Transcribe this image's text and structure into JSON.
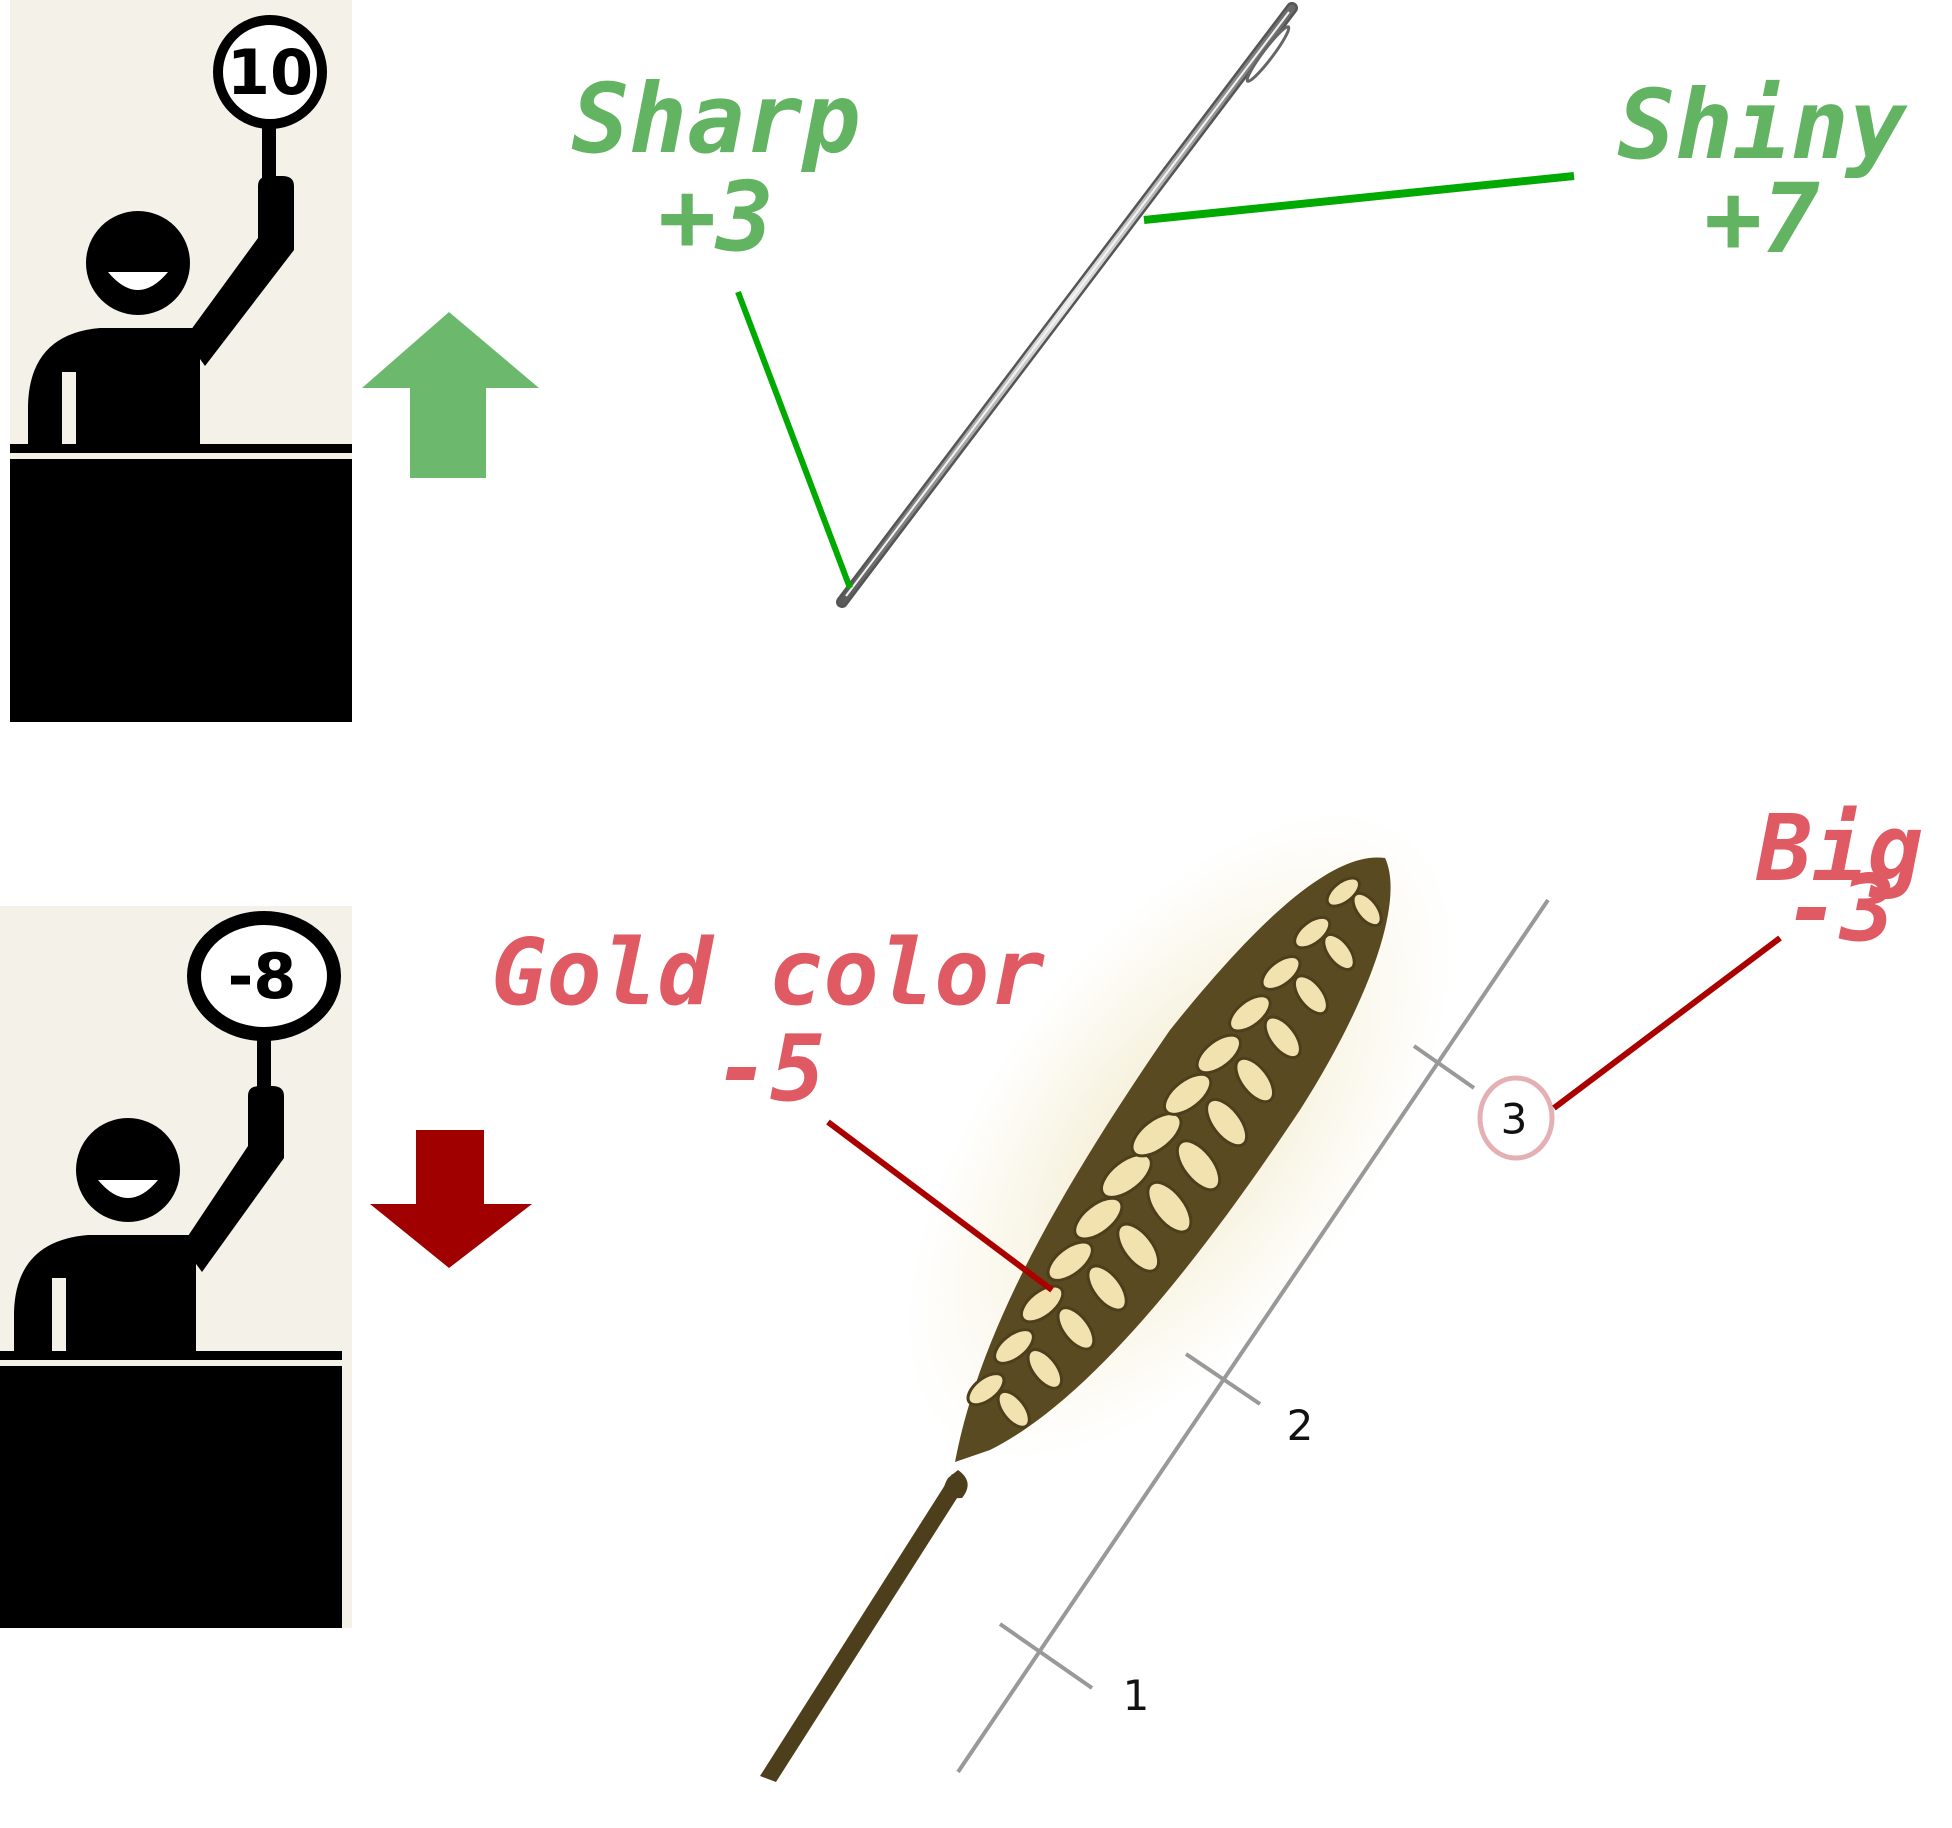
{
  "colors": {
    "positive_text": "#62b462",
    "positive_line": "#00aa00",
    "positive_arrow": "#6cb86c",
    "negative_text": "#e05a63",
    "negative_line": "#aa0000",
    "negative_arrow": "#a00000",
    "panel_bg": "#f3f1e8",
    "figure": "#000000",
    "ruler": "#999999"
  },
  "judges": [
    {
      "score": "10",
      "arrow": "up-arrow"
    },
    {
      "score": "-8",
      "arrow": "down-arrow"
    }
  ],
  "needle": {
    "features": [
      {
        "name": "Sharp",
        "value": "+3"
      },
      {
        "name": "Shiny",
        "value": "+7"
      }
    ]
  },
  "wheat": {
    "features": [
      {
        "name": "Gold color",
        "value": "-5"
      },
      {
        "name": "Big",
        "value": "-3"
      }
    ],
    "ruler_ticks": [
      "1",
      "2",
      "3"
    ]
  }
}
